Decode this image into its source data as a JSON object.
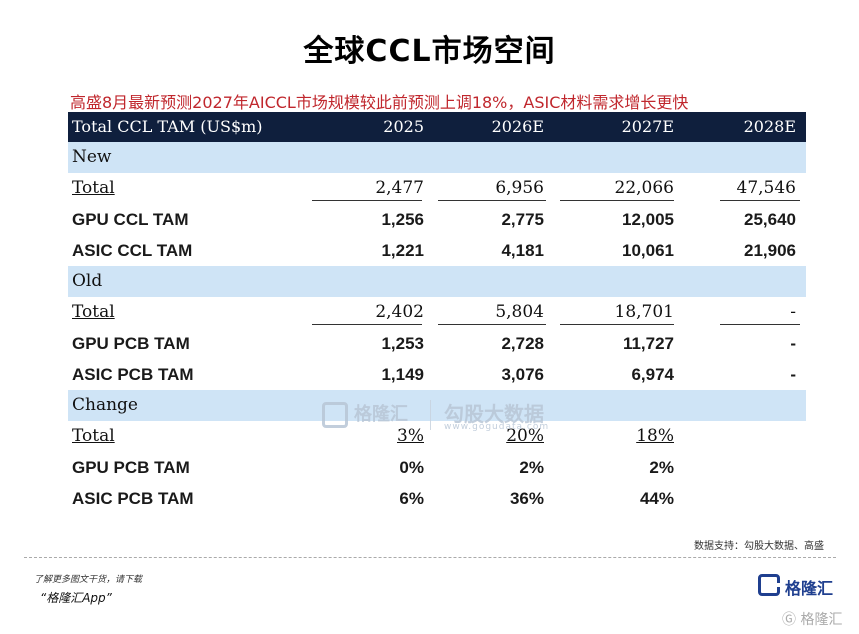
{
  "title": "全球CCL市场空间",
  "subtitle": "高盛8月最新预测2027年AICCL市场规模较此前预测上调18%，ASIC材料需求增长更快",
  "table": {
    "header": {
      "label": "Total CCL TAM (US$m)",
      "years": [
        "2025",
        "2026E",
        "2027E",
        "2028E"
      ]
    },
    "sections": [
      {
        "name": "New",
        "rows": [
          {
            "label": "Total",
            "values": [
              "2,477",
              "6,956",
              "22,066",
              "47,546"
            ]
          },
          {
            "label": "GPU CCL TAM",
            "values": [
              "1,256",
              "2,775",
              "12,005",
              "25,640"
            ]
          },
          {
            "label": "ASIC CCL TAM",
            "values": [
              "1,221",
              "4,181",
              "10,061",
              "21,906"
            ]
          }
        ]
      },
      {
        "name": "Old",
        "rows": [
          {
            "label": "Total",
            "values": [
              "2,402",
              "5,804",
              "18,701",
              "-"
            ]
          },
          {
            "label": "GPU PCB TAM",
            "values": [
              "1,253",
              "2,728",
              "11,727",
              "-"
            ]
          },
          {
            "label": "ASIC PCB TAM",
            "values": [
              "1,149",
              "3,076",
              "6,974",
              "-"
            ]
          }
        ]
      },
      {
        "name": "Change",
        "rows": [
          {
            "label": "Total",
            "values": [
              "3%",
              "20%",
              "18%",
              ""
            ]
          },
          {
            "label": "GPU PCB TAM",
            "values": [
              "0%",
              "2%",
              "2%",
              ""
            ]
          },
          {
            "label": "ASIC PCB TAM",
            "values": [
              "6%",
              "36%",
              "44%",
              ""
            ]
          }
        ]
      }
    ]
  },
  "watermark": {
    "logo_text": "格隆汇",
    "brand": "勾股大数据",
    "url": "www.gogudata.com"
  },
  "source_note": "数据支持：勾股大数据、高盛",
  "footer": {
    "hint": "了解更多图文干货，请下载",
    "app": "“格隆汇App”",
    "logo_text": "格隆汇",
    "corner_mark": "格隆汇"
  },
  "colors": {
    "header_bg": "#0f1f3d",
    "section_bg": "#cfe4f6",
    "subtitle": "#c0272d",
    "brand_blue": "#1f3f8f"
  }
}
